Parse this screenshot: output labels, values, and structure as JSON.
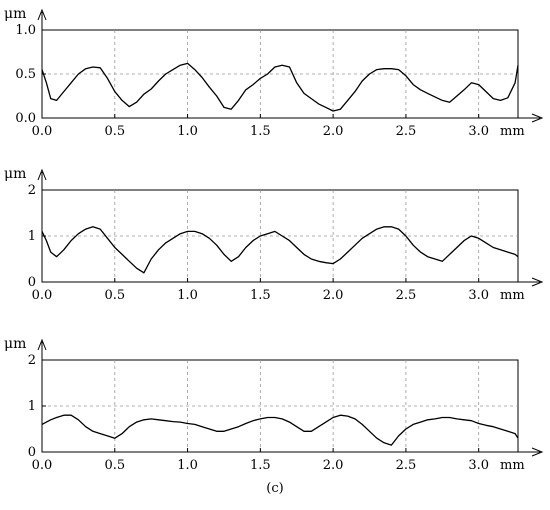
{
  "caption": "(c)",
  "chart_data": [
    {
      "type": "line",
      "y_unit_label": "μm",
      "x_unit_label": "mm",
      "xlim": [
        0,
        3.27
      ],
      "ylim": [
        0,
        1.0
      ],
      "x_ticks": [
        "0.0",
        "0.5",
        "1.0",
        "1.5",
        "2.0",
        "2.5",
        "3.0"
      ],
      "y_ticks": [
        "0.0",
        "0.5",
        "1.0"
      ],
      "grid": true,
      "series": [
        {
          "x": [
            0.0,
            0.03,
            0.06,
            0.1,
            0.15,
            0.2,
            0.25,
            0.3,
            0.35,
            0.4,
            0.45,
            0.5,
            0.55,
            0.6,
            0.65,
            0.7,
            0.75,
            0.8,
            0.85,
            0.9,
            0.95,
            1.0,
            1.05,
            1.1,
            1.15,
            1.2,
            1.25,
            1.3,
            1.35,
            1.4,
            1.45,
            1.5,
            1.55,
            1.6,
            1.65,
            1.7,
            1.75,
            1.8,
            1.85,
            1.9,
            1.95,
            2.0,
            2.05,
            2.1,
            2.15,
            2.2,
            2.25,
            2.3,
            2.35,
            2.4,
            2.45,
            2.5,
            2.55,
            2.6,
            2.65,
            2.7,
            2.75,
            2.8,
            2.85,
            2.9,
            2.95,
            3.0,
            3.05,
            3.1,
            3.15,
            3.2,
            3.25,
            3.27
          ],
          "y": [
            0.55,
            0.4,
            0.22,
            0.2,
            0.3,
            0.4,
            0.5,
            0.56,
            0.58,
            0.57,
            0.45,
            0.3,
            0.2,
            0.13,
            0.18,
            0.27,
            0.33,
            0.42,
            0.5,
            0.55,
            0.6,
            0.62,
            0.55,
            0.46,
            0.35,
            0.25,
            0.12,
            0.1,
            0.2,
            0.32,
            0.38,
            0.45,
            0.5,
            0.58,
            0.6,
            0.58,
            0.4,
            0.28,
            0.22,
            0.16,
            0.12,
            0.08,
            0.1,
            0.2,
            0.3,
            0.42,
            0.5,
            0.55,
            0.56,
            0.56,
            0.55,
            0.48,
            0.38,
            0.32,
            0.28,
            0.24,
            0.2,
            0.18,
            0.25,
            0.32,
            0.4,
            0.38,
            0.3,
            0.22,
            0.2,
            0.23,
            0.4,
            0.6
          ]
        }
      ]
    },
    {
      "type": "line",
      "y_unit_label": "μm",
      "x_unit_label": "mm",
      "xlim": [
        0,
        3.27
      ],
      "ylim": [
        0,
        2.0
      ],
      "x_ticks": [
        "0.0",
        "0.5",
        "1.0",
        "1.5",
        "2.0",
        "2.5",
        "3.0"
      ],
      "y_ticks": [
        "0",
        "1",
        "2"
      ],
      "grid": true,
      "series": [
        {
          "x": [
            0.0,
            0.03,
            0.06,
            0.1,
            0.15,
            0.2,
            0.25,
            0.3,
            0.35,
            0.4,
            0.45,
            0.5,
            0.55,
            0.6,
            0.65,
            0.7,
            0.75,
            0.8,
            0.85,
            0.9,
            0.95,
            1.0,
            1.05,
            1.1,
            1.15,
            1.2,
            1.25,
            1.3,
            1.35,
            1.4,
            1.45,
            1.5,
            1.55,
            1.6,
            1.65,
            1.7,
            1.75,
            1.8,
            1.85,
            1.9,
            1.95,
            2.0,
            2.05,
            2.1,
            2.15,
            2.2,
            2.25,
            2.3,
            2.35,
            2.4,
            2.45,
            2.5,
            2.55,
            2.6,
            2.65,
            2.7,
            2.75,
            2.8,
            2.85,
            2.9,
            2.95,
            3.0,
            3.05,
            3.1,
            3.15,
            3.2,
            3.25,
            3.27
          ],
          "y": [
            1.1,
            0.9,
            0.65,
            0.55,
            0.7,
            0.9,
            1.05,
            1.15,
            1.2,
            1.15,
            0.95,
            0.75,
            0.6,
            0.45,
            0.3,
            0.2,
            0.5,
            0.7,
            0.85,
            0.95,
            1.05,
            1.1,
            1.1,
            1.05,
            0.95,
            0.8,
            0.6,
            0.45,
            0.55,
            0.75,
            0.9,
            1.0,
            1.05,
            1.1,
            1.0,
            0.9,
            0.75,
            0.6,
            0.5,
            0.45,
            0.42,
            0.4,
            0.5,
            0.65,
            0.8,
            0.95,
            1.05,
            1.15,
            1.2,
            1.2,
            1.15,
            1.0,
            0.8,
            0.65,
            0.55,
            0.5,
            0.45,
            0.6,
            0.75,
            0.9,
            1.0,
            0.95,
            0.85,
            0.75,
            0.7,
            0.65,
            0.6,
            0.55
          ]
        }
      ]
    },
    {
      "type": "line",
      "y_unit_label": "μm",
      "x_unit_label": "mm",
      "xlim": [
        0,
        3.27
      ],
      "ylim": [
        0,
        2.0
      ],
      "x_ticks": [
        "0.0",
        "0.5",
        "1.0",
        "1.5",
        "2.0",
        "2.5",
        "3.0"
      ],
      "y_ticks": [
        "0",
        "1",
        "2"
      ],
      "grid": true,
      "series": [
        {
          "x": [
            0.0,
            0.03,
            0.06,
            0.1,
            0.15,
            0.2,
            0.25,
            0.3,
            0.35,
            0.4,
            0.45,
            0.5,
            0.55,
            0.6,
            0.65,
            0.7,
            0.75,
            0.8,
            0.85,
            0.9,
            0.95,
            1.0,
            1.05,
            1.1,
            1.15,
            1.2,
            1.25,
            1.3,
            1.35,
            1.4,
            1.45,
            1.5,
            1.55,
            1.6,
            1.65,
            1.7,
            1.75,
            1.8,
            1.85,
            1.9,
            1.95,
            2.0,
            2.05,
            2.1,
            2.15,
            2.2,
            2.25,
            2.3,
            2.35,
            2.4,
            2.45,
            2.5,
            2.55,
            2.6,
            2.65,
            2.7,
            2.75,
            2.8,
            2.85,
            2.9,
            2.95,
            3.0,
            3.05,
            3.1,
            3.15,
            3.2,
            3.25,
            3.27
          ],
          "y": [
            0.6,
            0.65,
            0.7,
            0.75,
            0.8,
            0.8,
            0.7,
            0.55,
            0.45,
            0.4,
            0.35,
            0.3,
            0.4,
            0.55,
            0.65,
            0.7,
            0.72,
            0.7,
            0.68,
            0.66,
            0.65,
            0.62,
            0.6,
            0.55,
            0.5,
            0.45,
            0.45,
            0.5,
            0.55,
            0.62,
            0.68,
            0.72,
            0.75,
            0.75,
            0.72,
            0.65,
            0.55,
            0.45,
            0.45,
            0.55,
            0.65,
            0.75,
            0.8,
            0.78,
            0.72,
            0.6,
            0.45,
            0.3,
            0.2,
            0.15,
            0.35,
            0.5,
            0.6,
            0.65,
            0.7,
            0.72,
            0.75,
            0.75,
            0.72,
            0.7,
            0.68,
            0.62,
            0.58,
            0.55,
            0.5,
            0.45,
            0.4,
            0.3
          ]
        }
      ]
    }
  ]
}
